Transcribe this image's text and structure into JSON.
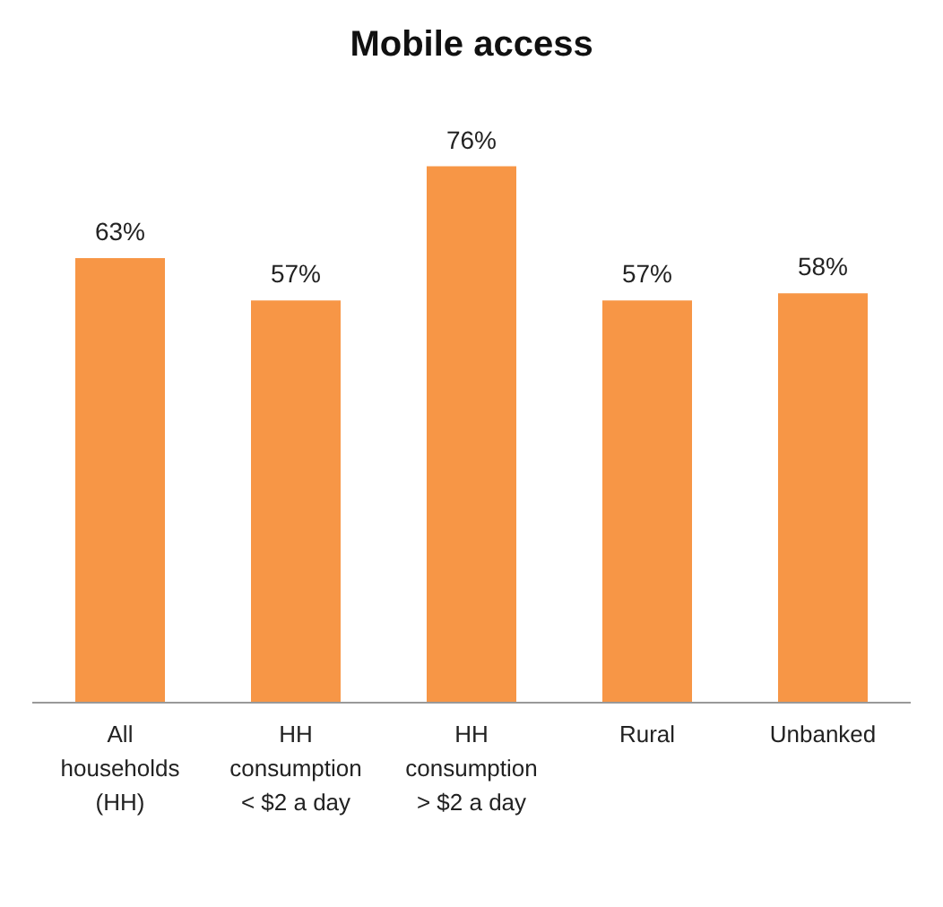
{
  "chart_data": {
    "type": "bar",
    "title": "Mobile access",
    "categories": [
      "All households (HH)",
      "HH consumption < $2 a day",
      "HH consumption > $2 a day",
      "Rural",
      "Unbanked"
    ],
    "values": [
      63,
      57,
      76,
      57,
      58
    ],
    "value_labels": [
      "63%",
      "57%",
      "76%",
      "57%",
      "58%"
    ],
    "color": "#f79646"
  }
}
